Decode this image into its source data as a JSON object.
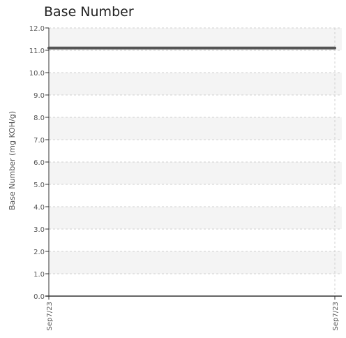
{
  "chart_data": {
    "type": "line",
    "title": "Base Number",
    "xlabel": "",
    "ylabel": "Base Number (mg KOH/g)",
    "ylim": [
      0,
      12
    ],
    "yticks": [
      "0.0",
      "1.0",
      "2.0",
      "3.0",
      "4.0",
      "5.0",
      "6.0",
      "7.0",
      "8.0",
      "9.0",
      "10.0",
      "11.0",
      "12.0"
    ],
    "x_tick_labels": [
      "Sep7/23",
      "Sep7/23"
    ],
    "grid": true,
    "series": [
      {
        "values": [
          11.1,
          11.1
        ]
      }
    ]
  },
  "colors": {
    "line": "#555555",
    "band": "#f4f4f4",
    "grid": "#d0d0d0",
    "axis": "#333333"
  }
}
